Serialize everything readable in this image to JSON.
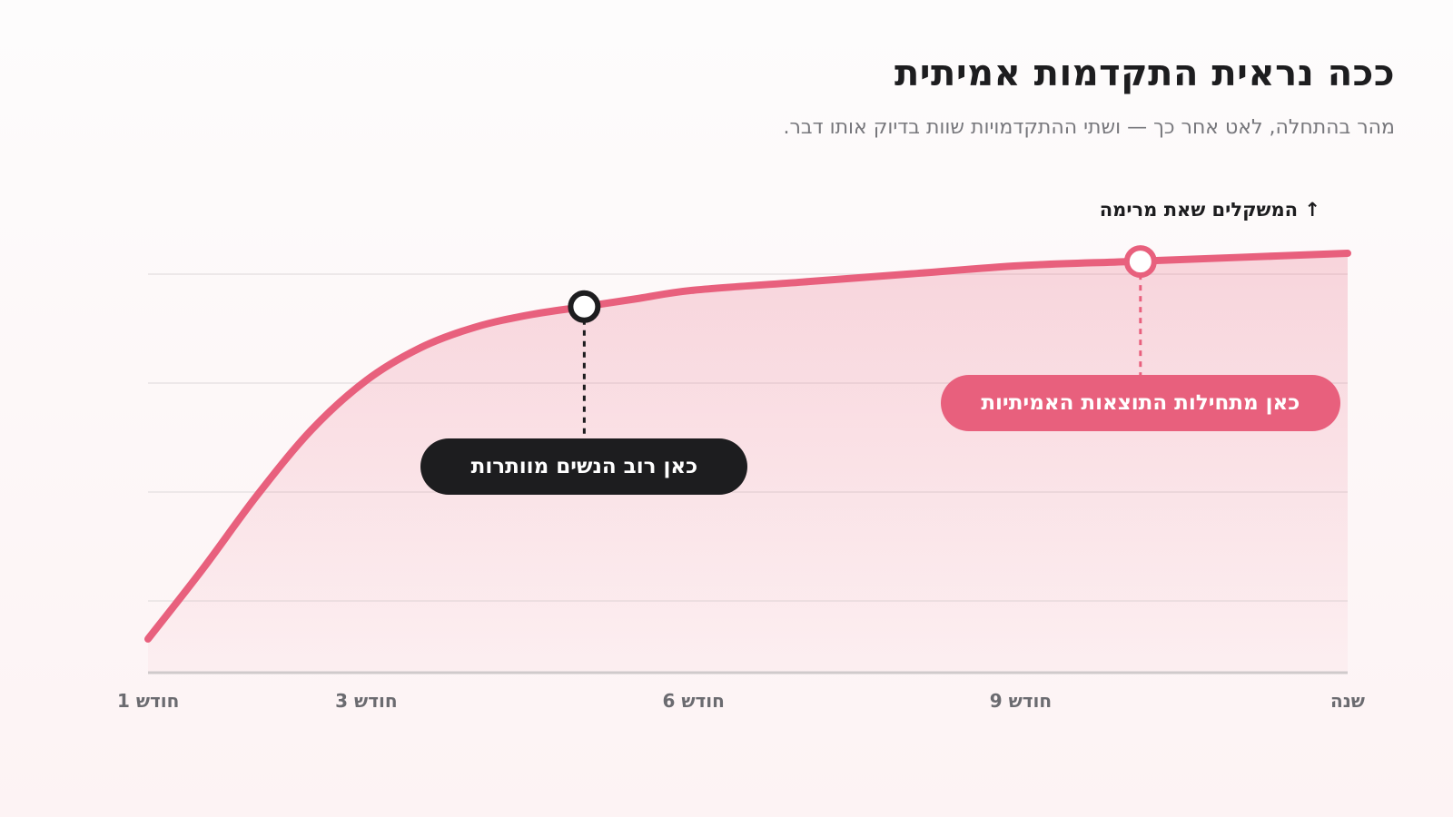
{
  "header": {
    "title": "ככה נראית התקדמות אמיתית",
    "subtitle": "מהר בהתחלה, לאט אחר כך — ושתי ההתקדמויות שוות בדיוק אותו דבר."
  },
  "colors": {
    "accent": "#e8607d",
    "dark": "#1d1d1f",
    "grid": "#e8e3e4",
    "axis": "#cfcacb"
  },
  "chart_data": {
    "type": "area",
    "ylabel": "↑ המשקלים שאת מרימה",
    "xlabel": "",
    "x_ticks": [
      "חודש 1",
      "חודש 3",
      "חודש 6",
      "חודש 9",
      "שנה"
    ],
    "x_tick_positions": [
      1,
      3,
      6,
      9,
      12
    ],
    "xlim": [
      1,
      12
    ],
    "ylim": [
      0,
      100
    ],
    "grid": true,
    "series": [
      {
        "x": [
          1,
          1.5,
          2,
          2.5,
          3,
          3.5,
          4,
          4.5,
          5,
          5.5,
          6,
          7,
          8,
          9,
          10,
          11,
          12
        ],
        "values": [
          4,
          21,
          39,
          55,
          67,
          75,
          80,
          83,
          85,
          87,
          89,
          91,
          93,
          95,
          96,
          97,
          98
        ]
      }
    ],
    "annotations": [
      {
        "x": 5,
        "y": 85,
        "text": "כאן רוב הנשים מוותרות",
        "style": "dark"
      },
      {
        "x": 10.1,
        "y": 96,
        "text": "כאן מתחילות התוצאות האמיתיות",
        "style": "accent"
      }
    ]
  }
}
